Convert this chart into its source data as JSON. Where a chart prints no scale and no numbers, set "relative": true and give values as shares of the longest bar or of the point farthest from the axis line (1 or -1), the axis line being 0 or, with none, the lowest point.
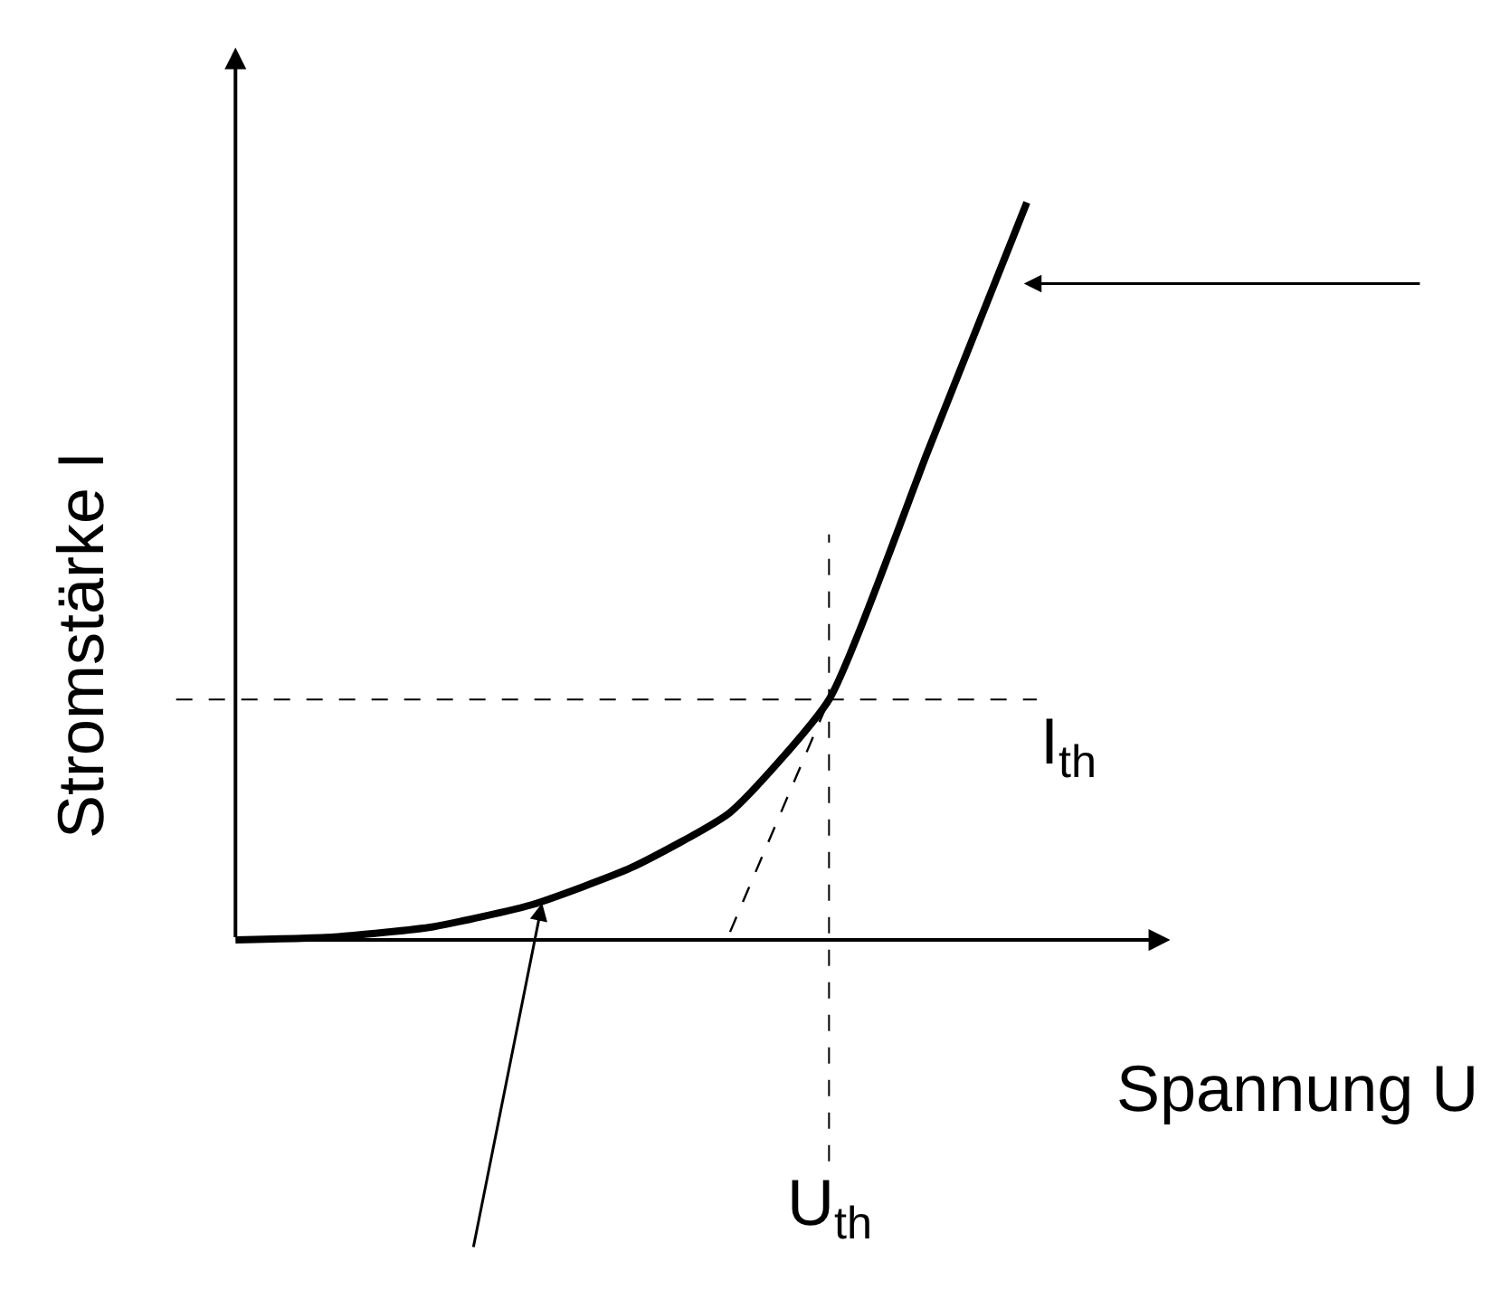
{
  "chart_data": {
    "type": "line",
    "relative": true,
    "xlabel": "Spannung U",
    "ylabel": "Stromstärke I",
    "categories": [
      null,
      null,
      null,
      null,
      null,
      null,
      null,
      null,
      null
    ],
    "series": [
      {
        "color": "#000000",
        "values": [
          0,
          0.004,
          0.018,
          0.048,
          0.098,
          0.173,
          0.326,
          0.663,
          1.0
        ]
      },
      {
        "type": "line",
        "line_style": "dashed",
        "color": "#000000",
        "values": [
          null,
          null,
          null,
          null,
          null,
          0.011,
          0.326,
          null,
          null
        ]
      }
    ],
    "ref_lines": [
      {
        "axis": "y",
        "value": 0.326,
        "label": "I$_{th}$",
        "color": "#000000",
        "line_style": "dashed"
      }
    ],
    "annotations": [
      "U$_{th}$"
    ]
  }
}
